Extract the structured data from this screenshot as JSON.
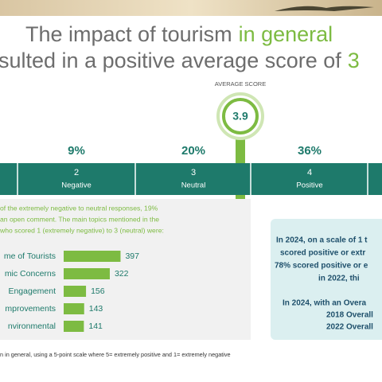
{
  "title": {
    "line1_part1": "The impact of tourism",
    "line1_part2": "in general",
    "line2_part1": "sulted in a positive average score of",
    "line2_part2": "3"
  },
  "average": {
    "label": "AVERAGE SCORE",
    "value": "3.9"
  },
  "scale": [
    {
      "percent": "9%",
      "number": "2",
      "label": "Negative"
    },
    {
      "percent": "20%",
      "number": "3",
      "label": "Neutral"
    },
    {
      "percent": "36%",
      "number": "4",
      "label": "Positive"
    }
  ],
  "comment": {
    "lines": [
      "of the extremely negative to neutral responses, 19%",
      "an open comment. The main topics mentioned in the",
      "who scored 1 (extremely negative) to 3 (neutral) were:"
    ]
  },
  "topics": {
    "items": [
      {
        "label": "me of Tourists",
        "value": 397
      },
      {
        "label": "mic Concerns",
        "value": 322
      },
      {
        "label": "Engagement",
        "value": 156
      },
      {
        "label": "mprovements",
        "value": 143
      },
      {
        "label": "nvironmental",
        "value": 141
      }
    ]
  },
  "summary": {
    "lines": [
      "In 2024, on a scale of 1 t",
      "scored positive or extr",
      "78% scored positive or e",
      "in 2022, thi",
      "In 2024, with an Overa",
      "2018 Overall",
      "2022 Overall"
    ]
  },
  "footnote": "n in general, using a 5-point scale where 5= extremely positive and 1= extremely negative"
}
